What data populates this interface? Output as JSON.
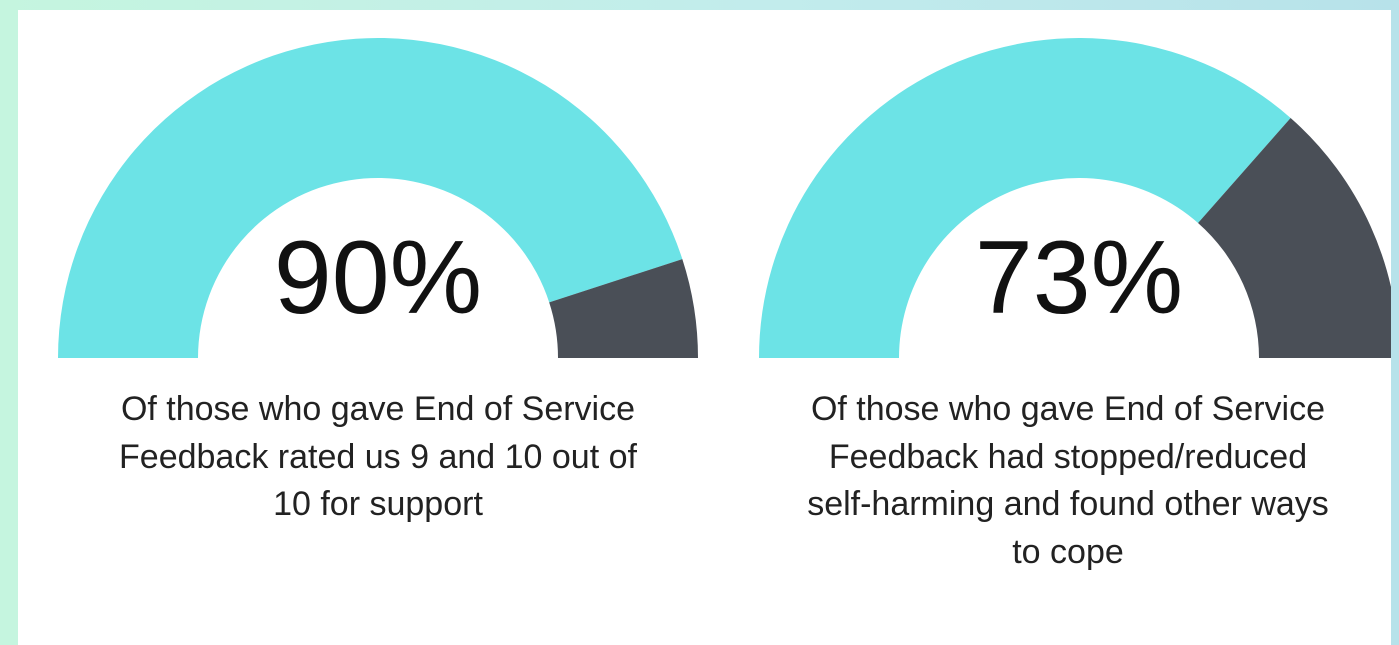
{
  "colors": {
    "filled": "#6ce3e6",
    "remaining": "#4a4f57",
    "text": "#111111"
  },
  "chart_data": [
    {
      "type": "gauge",
      "value": 90,
      "max": 100,
      "value_label": "90%",
      "caption_lines": [
        "Of those who gave End of Service",
        "Feedback rated us 9 and 10 out of",
        "10 for support"
      ]
    },
    {
      "type": "gauge",
      "value": 73,
      "max": 100,
      "value_label": "73%",
      "caption_lines": [
        "Of those who gave End of Service",
        "Feedback had stopped/reduced",
        "self-harming and found other ways",
        "to cope"
      ]
    }
  ]
}
